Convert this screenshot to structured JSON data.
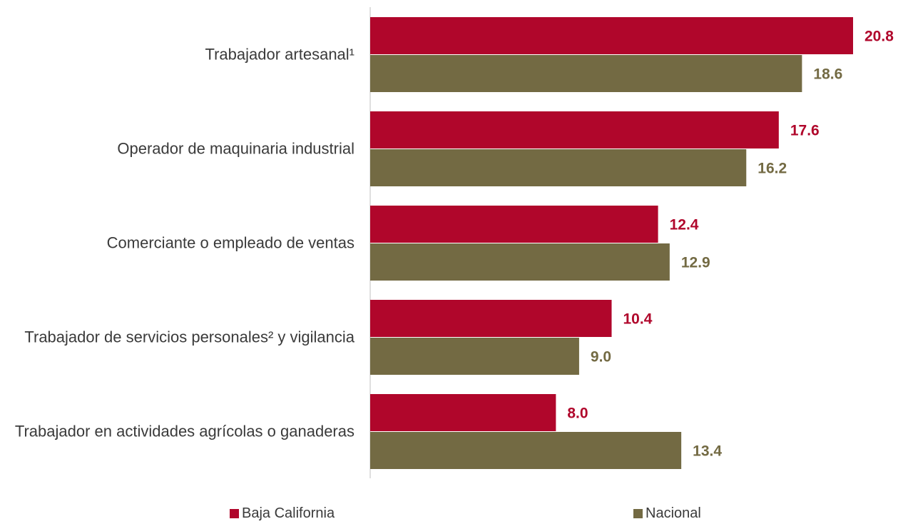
{
  "chart_data": {
    "type": "bar",
    "orientation": "horizontal",
    "categories": [
      "Trabajador artesanal¹",
      "Operador de maquinaria industrial",
      "Comerciante o empleado de ventas",
      "Trabajador de servicios personales² y vigilancia",
      "Trabajador en actividades agrícolas o ganaderas"
    ],
    "series": [
      {
        "name": "Baja California",
        "color": "#b0062b",
        "values": [
          20.8,
          17.6,
          12.4,
          10.4,
          8.0
        ],
        "value_labels": [
          "20.8",
          "17.6",
          "12.4",
          "10.4",
          "8.0"
        ]
      },
      {
        "name": "Nacional",
        "color": "#736a43",
        "values": [
          18.6,
          16.2,
          12.9,
          9.0,
          13.4
        ],
        "value_labels": [
          "18.6",
          "16.2",
          "12.9",
          "9.0",
          "13.4"
        ]
      }
    ]
  }
}
